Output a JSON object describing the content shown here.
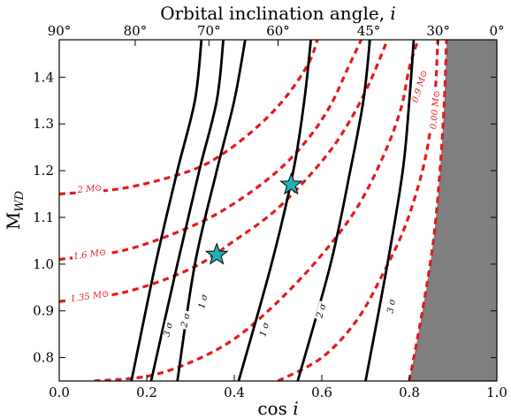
{
  "chart_data": {
    "type": "line",
    "title": "",
    "xlabel": "cos i",
    "ylabel": "M_WD",
    "top_xlabel": "Orbital inclination angle, i",
    "xlim": [
      0.0,
      1.0
    ],
    "ylim": [
      0.75,
      1.48
    ],
    "x_ticks": [
      0.0,
      0.2,
      0.4,
      0.6,
      0.8,
      1.0
    ],
    "x_tick_labels": [
      "0.0",
      "0.2",
      "0.4",
      "0.6",
      "0.8",
      "1.0"
    ],
    "y_ticks": [
      0.8,
      0.9,
      1.0,
      1.1,
      1.2,
      1.3,
      1.4
    ],
    "y_tick_labels": [
      "0.8",
      "0.9",
      "1.0",
      "1.1",
      "1.2",
      "1.3",
      "1.4"
    ],
    "top_ticks": [
      {
        "label": "90°",
        "cos": 0.0
      },
      {
        "label": "80°",
        "cos": 0.1736
      },
      {
        "label": "70°",
        "cos": 0.342
      },
      {
        "label": "60°",
        "cos": 0.5
      },
      {
        "label": "45°",
        "cos": 0.7071
      },
      {
        "label": "30°",
        "cos": 0.866
      },
      {
        "label": "0°",
        "cos": 1.0
      }
    ],
    "grid": false,
    "shaded_region": {
      "color": "#7f7f7f"
    },
    "confidence_contours": [
      {
        "name": "3σ",
        "label": "3 σ",
        "points": [
          [
            0.165,
            0.75
          ],
          [
            0.22,
            1.0
          ],
          [
            0.27,
            1.2
          ],
          [
            0.31,
            1.35
          ],
          [
            0.325,
            1.48
          ]
        ],
        "label_pos": [
          0.25,
          0.86
        ]
      },
      {
        "name": "2σ",
        "label": "2 σ",
        "points": [
          [
            0.21,
            0.75
          ],
          [
            0.27,
            1.0
          ],
          [
            0.32,
            1.2
          ],
          [
            0.36,
            1.35
          ],
          [
            0.375,
            1.48
          ]
        ],
        "label_pos": [
          0.29,
          0.88
        ]
      },
      {
        "name": "1σ",
        "label": "1 σ",
        "points": [
          [
            0.27,
            0.75
          ],
          [
            0.31,
            1.0
          ],
          [
            0.36,
            1.2
          ],
          [
            0.4,
            1.35
          ],
          [
            0.425,
            1.48
          ]
        ],
        "label_pos": [
          0.33,
          0.92
        ]
      },
      {
        "name": "1σ",
        "label": "1 σ",
        "points": [
          [
            0.41,
            0.75
          ],
          [
            0.485,
            1.0
          ],
          [
            0.535,
            1.2
          ],
          [
            0.56,
            1.35
          ],
          [
            0.575,
            1.48
          ]
        ],
        "label_pos": [
          0.47,
          0.86
        ]
      },
      {
        "name": "2σ",
        "label": "2 σ",
        "points": [
          [
            0.545,
            0.75
          ],
          [
            0.62,
            1.0
          ],
          [
            0.665,
            1.2
          ],
          [
            0.695,
            1.35
          ],
          [
            0.71,
            1.48
          ]
        ],
        "label_pos": [
          0.6,
          0.9
        ]
      },
      {
        "name": "3σ",
        "label": "3 σ",
        "points": [
          [
            0.7,
            0.75
          ],
          [
            0.75,
            1.0
          ],
          [
            0.785,
            1.2
          ],
          [
            0.8,
            1.35
          ],
          [
            0.81,
            1.48
          ]
        ],
        "label_pos": [
          0.76,
          0.91
        ]
      }
    ],
    "total_mass_curves": [
      {
        "label": "2 M⊙",
        "points": [
          [
            0.0,
            1.15
          ],
          [
            0.15,
            1.163
          ],
          [
            0.3,
            1.2
          ],
          [
            0.38,
            1.24
          ],
          [
            0.46,
            1.3
          ],
          [
            0.52,
            1.36
          ],
          [
            0.57,
            1.43
          ],
          [
            0.59,
            1.48
          ]
        ],
        "label_pos": [
          0.07,
          1.16
        ]
      },
      {
        "label": "1.6 M⊙",
        "points": [
          [
            0.0,
            1.01
          ],
          [
            0.15,
            1.03
          ],
          [
            0.3,
            1.08
          ],
          [
            0.4,
            1.13
          ],
          [
            0.5,
            1.2
          ],
          [
            0.57,
            1.27
          ],
          [
            0.62,
            1.34
          ],
          [
            0.66,
            1.42
          ],
          [
            0.69,
            1.48
          ]
        ],
        "label_pos": [
          0.07,
          1.02
        ]
      },
      {
        "label": "1.35 M⊙",
        "points": [
          [
            0.0,
            0.92
          ],
          [
            0.15,
            0.94
          ],
          [
            0.3,
            0.99
          ],
          [
            0.4,
            1.05
          ],
          [
            0.5,
            1.12
          ],
          [
            0.6,
            1.22
          ],
          [
            0.66,
            1.3
          ],
          [
            0.71,
            1.39
          ],
          [
            0.75,
            1.48
          ]
        ],
        "label_pos": [
          0.07,
          0.93
        ]
      },
      {
        "label": "",
        "points": [
          [
            0.08,
            0.75
          ],
          [
            0.2,
            0.76
          ],
          [
            0.3,
            0.79
          ],
          [
            0.4,
            0.84
          ],
          [
            0.5,
            0.92
          ],
          [
            0.6,
            1.02
          ],
          [
            0.68,
            1.12
          ],
          [
            0.74,
            1.23
          ],
          [
            0.78,
            1.33
          ],
          [
            0.8,
            1.42
          ],
          [
            0.82,
            1.48
          ]
        ],
        "label_pos": null
      },
      {
        "label": "0.9 M⊙",
        "points": [
          [
            0.5,
            0.75
          ],
          [
            0.6,
            0.8
          ],
          [
            0.68,
            0.88
          ],
          [
            0.74,
            0.98
          ],
          [
            0.79,
            1.08
          ],
          [
            0.83,
            1.2
          ],
          [
            0.85,
            1.3
          ],
          [
            0.86,
            1.38
          ],
          [
            0.865,
            1.48
          ]
        ],
        "label_pos": [
          0.825,
          1.38
        ]
      },
      {
        "label": "0.00 M⊙",
        "points": [
          [
            0.8,
            0.75
          ],
          [
            0.83,
            0.9
          ],
          [
            0.855,
            1.05
          ],
          [
            0.87,
            1.2
          ],
          [
            0.88,
            1.35
          ],
          [
            0.885,
            1.48
          ]
        ],
        "label_pos": [
          0.86,
          1.33
        ]
      }
    ],
    "markers": [
      {
        "x": 0.36,
        "y": 1.02,
        "symbol": "star",
        "color": "#1fb2b5"
      },
      {
        "x": 0.53,
        "y": 1.17,
        "symbol": "star",
        "color": "#1fb2b5"
      }
    ],
    "colors": {
      "contour": "#000000",
      "mass": "#e41a1c",
      "shade": "#7f7f7f",
      "marker": "#1fb2b5"
    }
  }
}
